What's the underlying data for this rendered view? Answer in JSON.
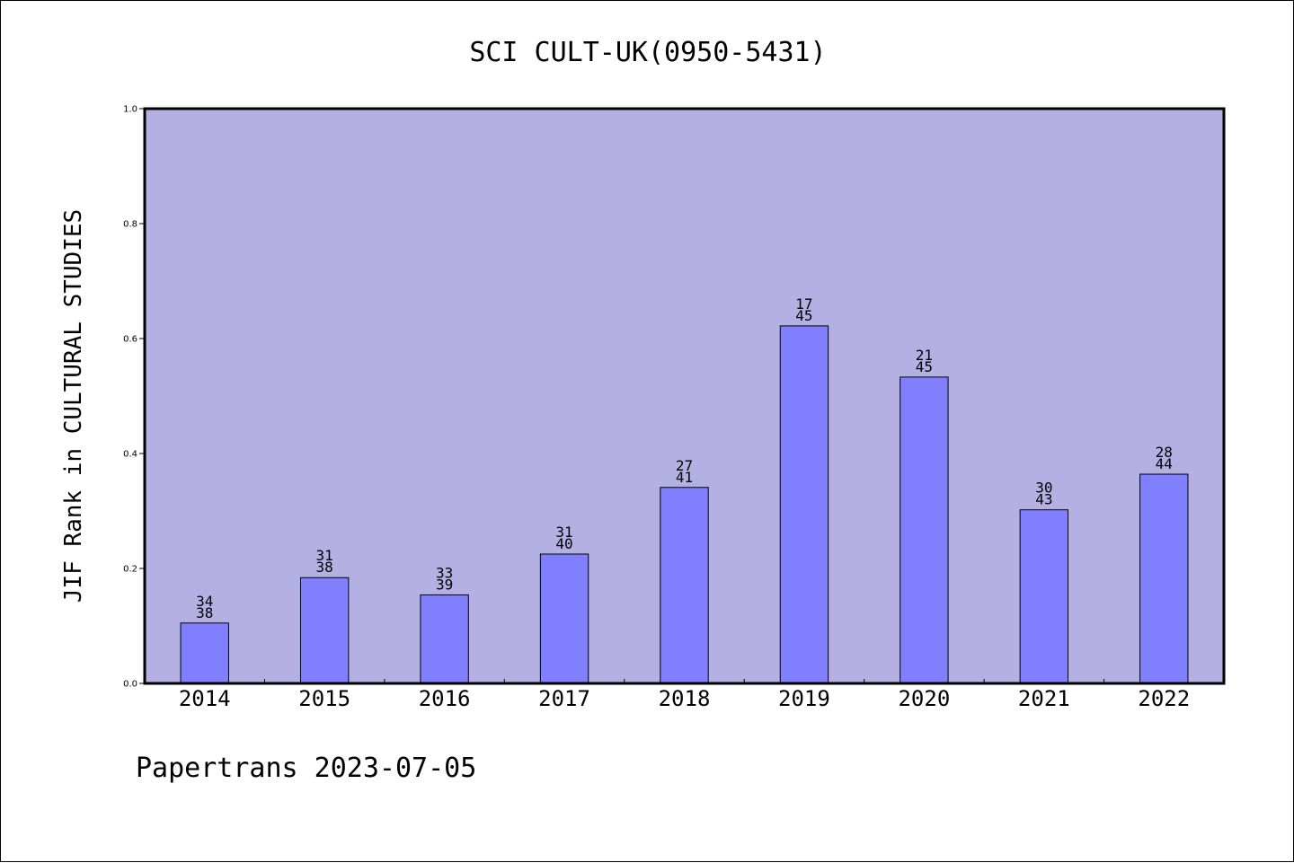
{
  "chart_data": {
    "type": "bar",
    "title": "SCI CULT-UK(0950-5431)",
    "ylabel": "JIF Rank in CULTURAL STUDIES",
    "xlabel": "",
    "footer": "Papertrans 2023-07-05",
    "categories": [
      "2014",
      "2015",
      "2016",
      "2017",
      "2018",
      "2019",
      "2020",
      "2021",
      "2022"
    ],
    "values": [
      0.105,
      0.184,
      0.154,
      0.225,
      0.341,
      0.622,
      0.533,
      0.302,
      0.364
    ],
    "annotations": [
      [
        "34",
        "38"
      ],
      [
        "31",
        "38"
      ],
      [
        "33",
        "39"
      ],
      [
        "31",
        "40"
      ],
      [
        "27",
        "41"
      ],
      [
        "17",
        "45"
      ],
      [
        "21",
        "45"
      ],
      [
        "30",
        "43"
      ],
      [
        "28",
        "44"
      ]
    ],
    "ylim": [
      0,
      1.0
    ],
    "yticks": [
      "0.0",
      "0.2",
      "0.4",
      "0.6",
      "0.8",
      "1.0"
    ],
    "grid": false,
    "colors": {
      "plot_bg": "#b5b0e3",
      "bar": "#8080ff",
      "axis": "#000000"
    }
  }
}
